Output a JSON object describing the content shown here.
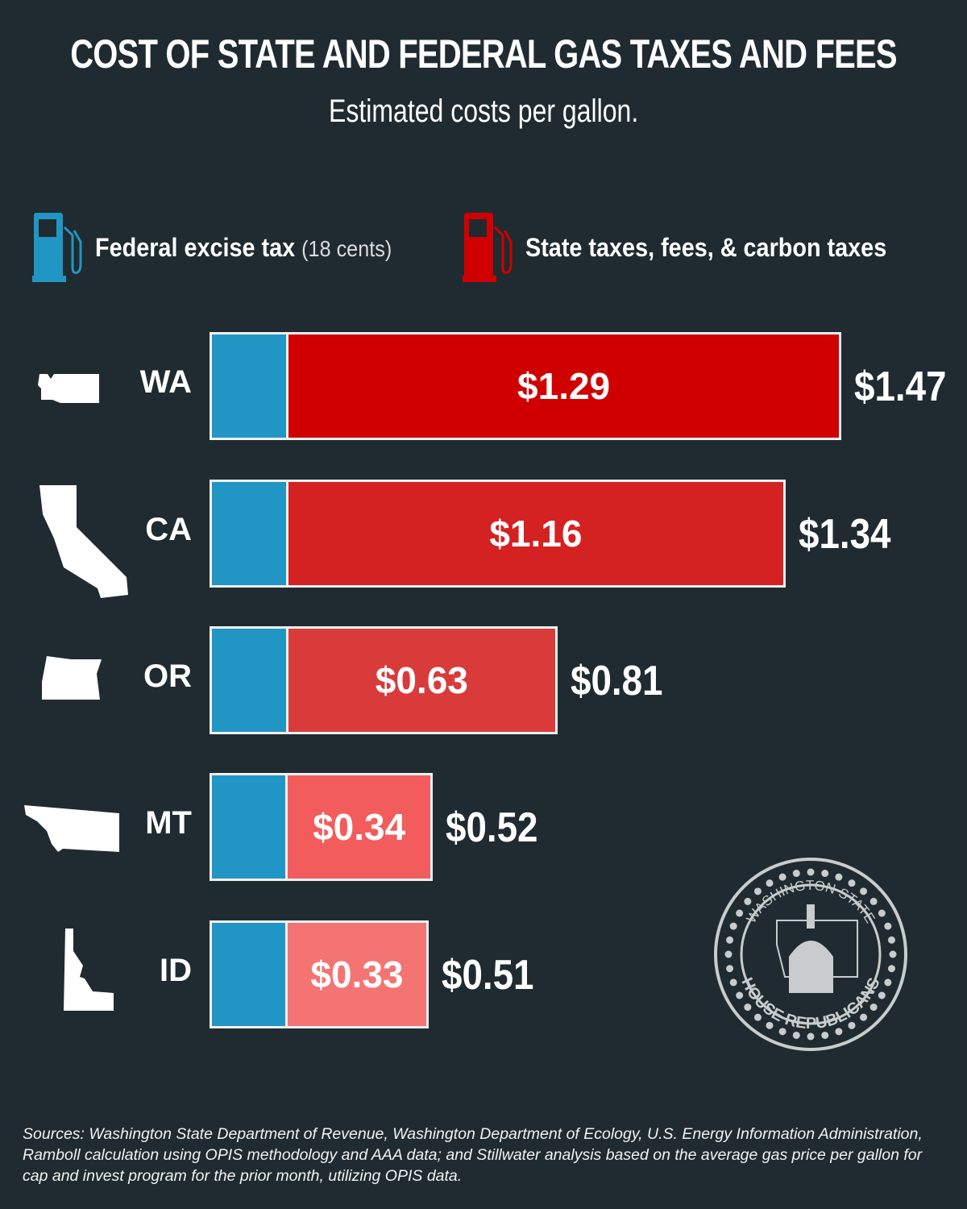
{
  "title": "COST OF STATE AND FEDERAL GAS TAXES AND FEES",
  "subtitle": "Estimated costs per gallon.",
  "legend": {
    "federal": {
      "label": "Federal excise tax",
      "note": "(18 cents)",
      "color": "#2196c4",
      "icon": "gas-pump-icon"
    },
    "state": {
      "label": "State taxes, fees, & carbon taxes",
      "color": "#d00000",
      "icon": "gas-pump-icon"
    }
  },
  "chart_data": {
    "type": "bar",
    "orientation": "horizontal",
    "stacked": true,
    "title": "COST OF STATE AND FEDERAL GAS TAXES AND FEES",
    "subtitle": "Estimated costs per gallon.",
    "categories": [
      "WA",
      "CA",
      "OR",
      "MT",
      "ID"
    ],
    "series": [
      {
        "name": "Federal excise tax",
        "values": [
          0.18,
          0.18,
          0.18,
          0.18,
          0.18
        ],
        "color": "#2196c4"
      },
      {
        "name": "State taxes, fees, & carbon taxes",
        "values": [
          1.29,
          1.16,
          0.63,
          0.34,
          0.33
        ],
        "labels": [
          "$1.29",
          "$1.16",
          "$0.63",
          "$0.34",
          "$0.33"
        ],
        "colors": [
          "#d00000",
          "#d42222",
          "#d93b3b",
          "#f35c5c",
          "#f47474"
        ]
      }
    ],
    "totals": [
      1.47,
      1.34,
      0.81,
      0.52,
      0.51
    ],
    "total_labels": [
      "$1.47",
      "$1.34",
      "$0.81",
      "$0.52",
      "$0.51"
    ],
    "grid": false,
    "legend": "top"
  },
  "seal": {
    "top": "WASHINGTON STATE",
    "bottom": "HOUSE REPUBLICANS"
  },
  "sources": "Sources: Washington State Department of Revenue, Washington Department of Ecology, U.S. Energy Information Administration, Ramboll calculation using OPIS methodology and AAA data; and Stillwater analysis based on the average gas price per gallon for cap and invest program for the prior month, utilizing OPIS data."
}
